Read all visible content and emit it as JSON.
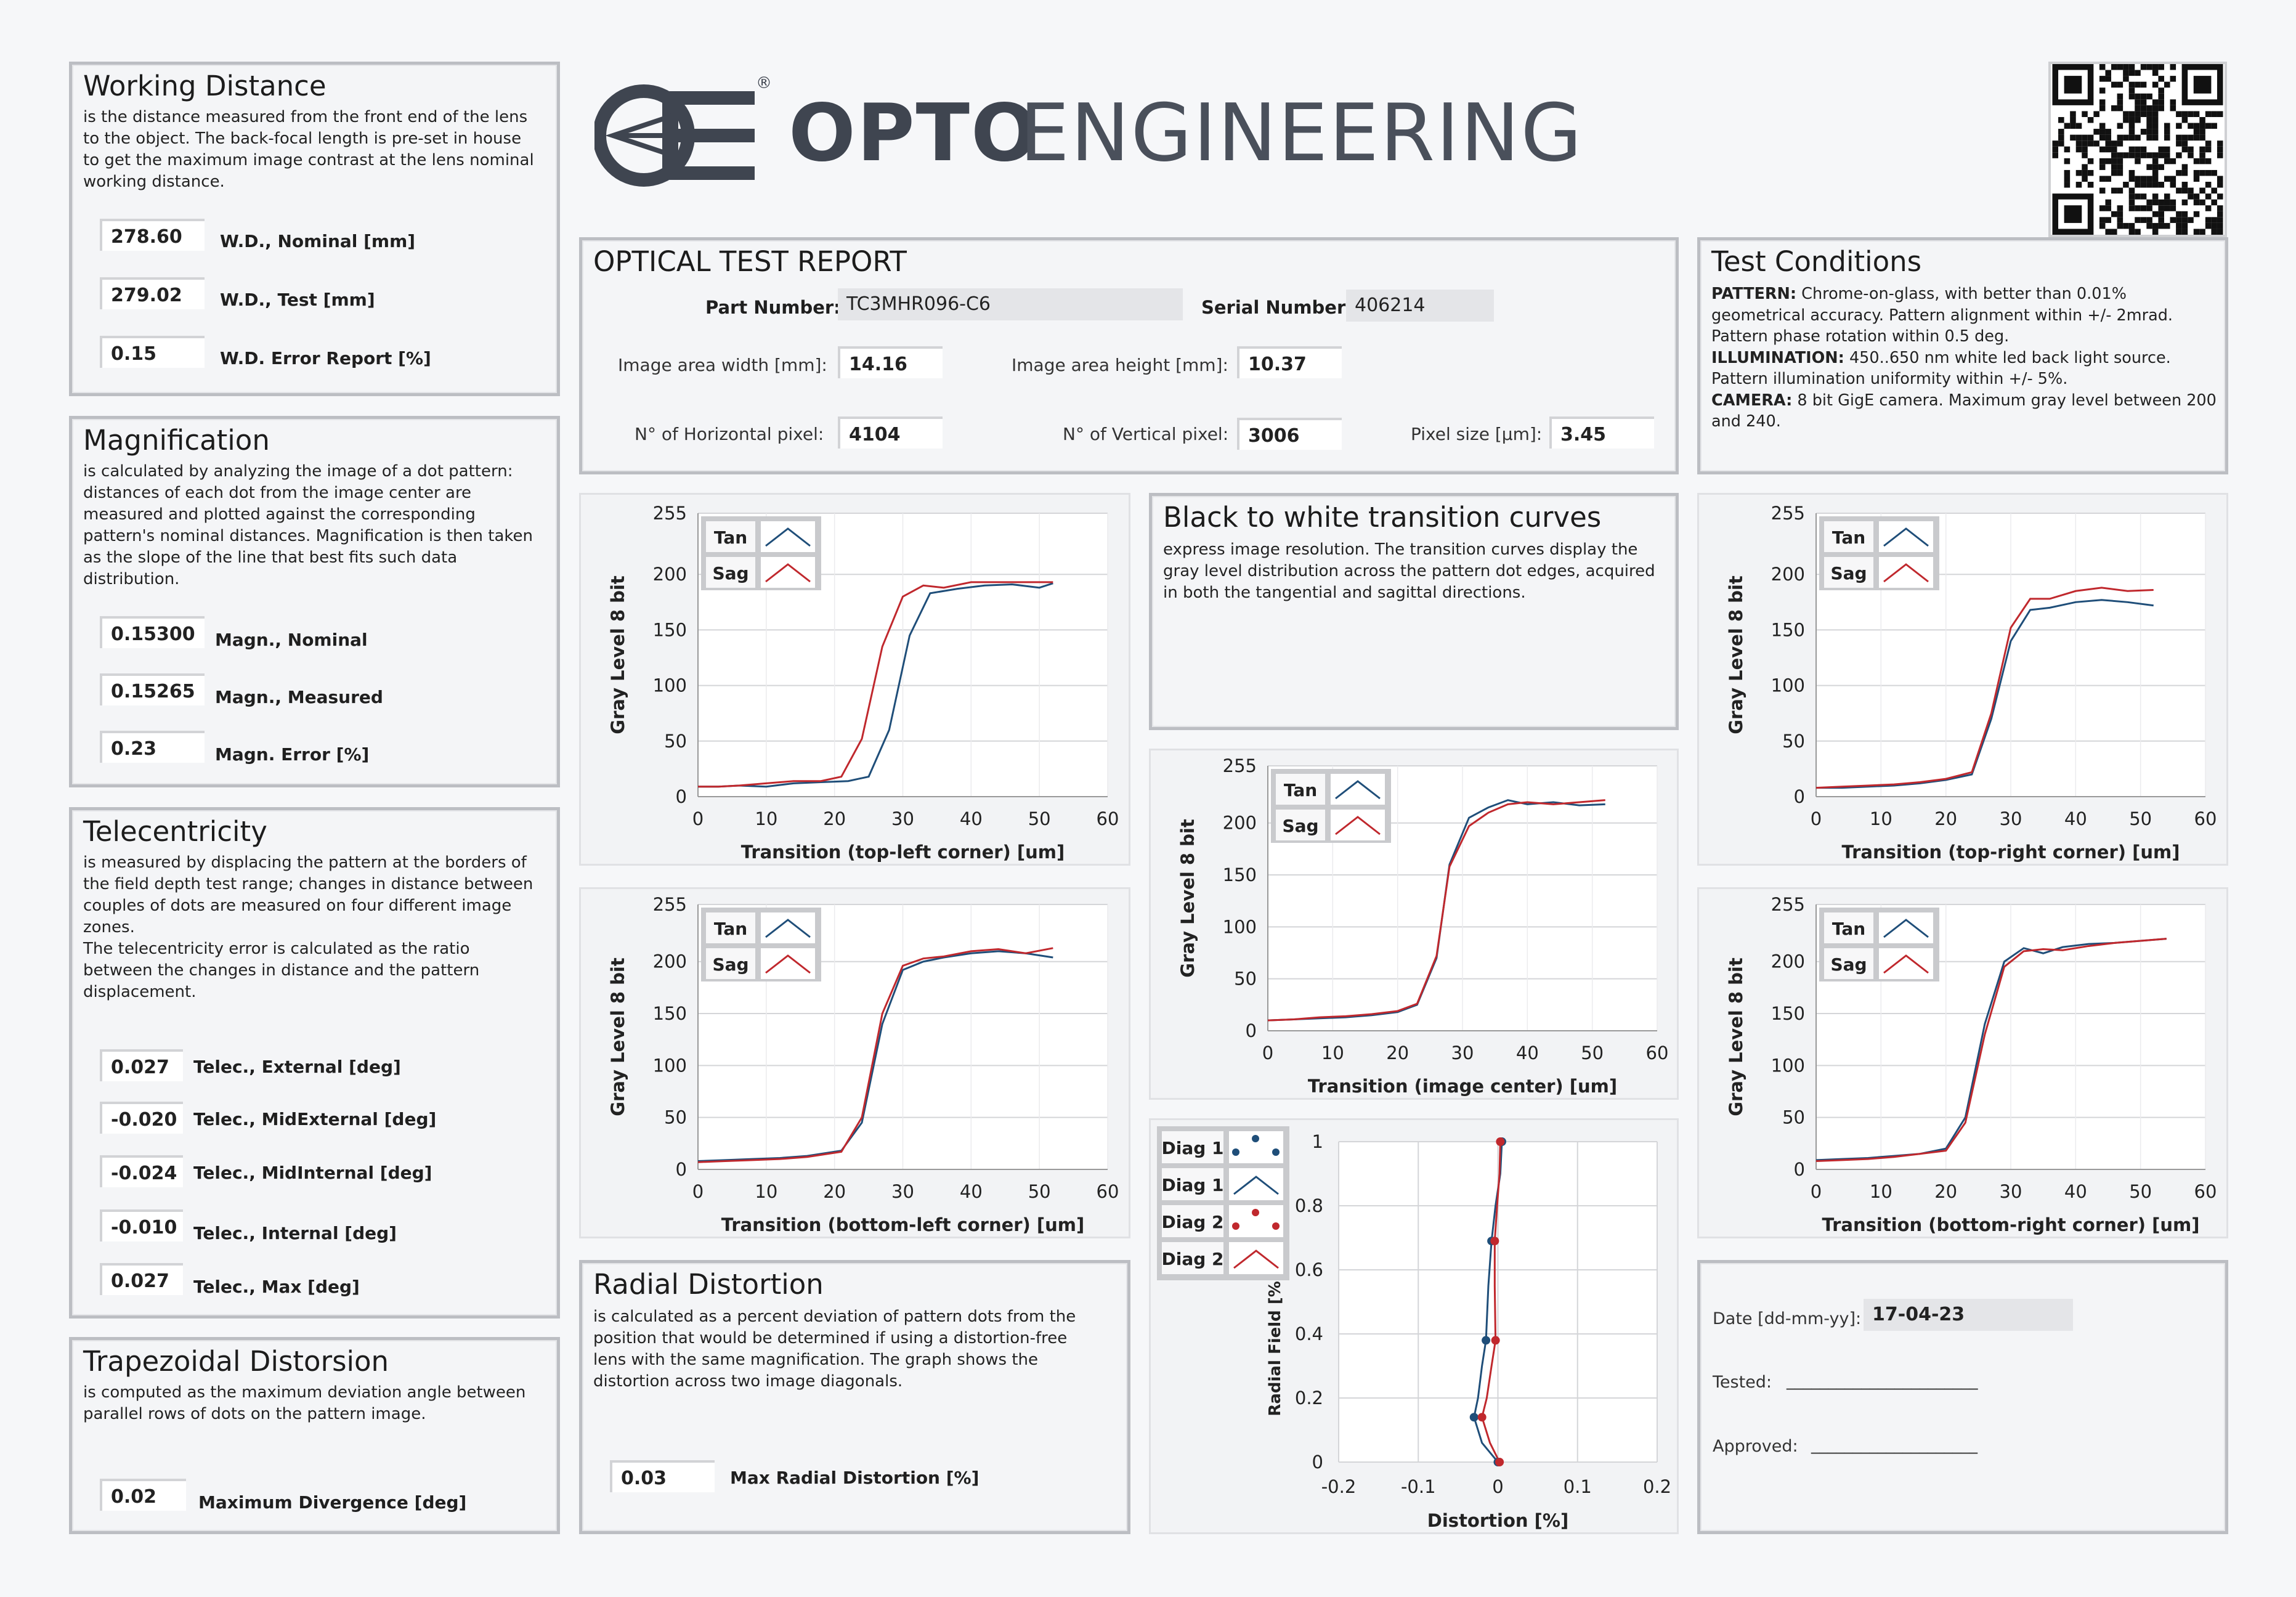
{
  "brand": {
    "name_bold": "OPTO",
    "name_light": "ENGINEERING",
    "registered": "®"
  },
  "working_distance": {
    "title": "Working Distance",
    "desc": [
      "is the distance measured from the front end of the lens",
      "to the object. The back-focal length is pre-set in house",
      "to get the maximum image contrast at the lens nominal",
      "working distance."
    ],
    "rows": [
      {
        "value": "278.60",
        "label": "W.D., Nominal [mm]"
      },
      {
        "value": "279.02",
        "label": "W.D., Test [mm]"
      },
      {
        "value": "0.15",
        "label": "W.D. Error Report [%]"
      }
    ]
  },
  "magnification": {
    "title": "Magnification",
    "desc": [
      "is calculated by analyzing the image of a dot pattern:",
      "distances of each dot from the image center are",
      "measured and plotted against the corresponding",
      "pattern's nominal distances. Magnification is then taken",
      "as the slope of the line that best fits such data",
      "distribution."
    ],
    "rows": [
      {
        "value": "0.15300",
        "label": "Magn., Nominal"
      },
      {
        "value": "0.15265",
        "label": "Magn., Measured"
      },
      {
        "value": "0.23",
        "label": "Magn. Error [%]"
      }
    ]
  },
  "telecentricity": {
    "title": "Telecentricity",
    "desc": [
      "is measured by displacing the pattern at the borders of",
      "the field depth test range; changes in distance between",
      "couples of dots are measured on four different image",
      "zones.",
      "The telecentricity error is calculated as the ratio",
      "between the changes in distance and the pattern",
      "displacement."
    ],
    "rows": [
      {
        "value": "0.027",
        "label": "Telec., External [deg]"
      },
      {
        "value": "-0.020",
        "label": "Telec., MidExternal [deg]"
      },
      {
        "value": "-0.024",
        "label": "Telec., MidInternal [deg]"
      },
      {
        "value": "-0.010",
        "label": "Telec., Internal [deg]"
      },
      {
        "value": "0.027",
        "label": "Telec., Max [deg]"
      }
    ]
  },
  "trapezoidal": {
    "title": "Trapezoidal Distorsion",
    "desc": [
      "is computed as the maximum deviation angle between",
      "parallel rows of dots on the pattern image."
    ],
    "value": "0.02",
    "label": "Maximum Divergence [deg]"
  },
  "report": {
    "title": "OPTICAL TEST REPORT",
    "part_label": "Part Number:",
    "part_value": "TC3MHR096-C6",
    "serial_label": "Serial Number:",
    "serial_value": "406214",
    "width_label": "Image area width [mm]:",
    "width_value": "14.16",
    "height_label": "Image area height [mm]:",
    "height_value": "10.37",
    "hpix_label": "N° of Horizontal pixel:",
    "hpix_value": "4104",
    "vpix_label": "N° of Vertical pixel:",
    "vpix_value": "3006",
    "pixsize_label": "Pixel size [µm]:",
    "pixsize_value": "3.45"
  },
  "test_conditions": {
    "title": "Test Conditions",
    "lines": [
      {
        "key": "PATTERN:",
        "text": " Chrome-on-glass, with better than 0.01%"
      },
      {
        "key": "",
        "text": "geometrical accuracy. Pattern alignment within +/- 2mrad."
      },
      {
        "key": "",
        "text": "Pattern phase rotation within 0.5 deg."
      },
      {
        "key": "ILLUMINATION:",
        "text": " 450..650 nm white led back light source."
      },
      {
        "key": "",
        "text": "Pattern illumination uniformity within +/- 5%."
      },
      {
        "key": "CAMERA:",
        "text": " 8 bit GigE camera. Maximum gray level between 200"
      },
      {
        "key": "",
        "text": "and 240."
      }
    ]
  },
  "bw_transition": {
    "title": "Black to white transition curves",
    "desc": [
      "express image resolution. The transition curves display the",
      "gray level distribution across the pattern dot edges, acquired",
      "in both the tangential and sagittal directions."
    ]
  },
  "radial": {
    "title": "Radial Distortion",
    "desc": [
      "is calculated as a percent deviation of pattern dots from the",
      "position that would be determined if using a distortion-free",
      "lens with the same magnification. The graph shows the",
      "distortion across two image diagonals."
    ],
    "value": "0.03",
    "label": "Max  Radial Distortion [%]"
  },
  "signoff": {
    "date_label": "Date [dd-mm-yy]:",
    "date_value": "17-04-23",
    "tested_label": "Tested:",
    "tested_line": "_______________________",
    "approved_label": "Approved:",
    "approved_line": "____________________"
  },
  "colors": {
    "tan": "#1f4e79",
    "sag": "#c0282d",
    "grid": "#d4d5d8"
  },
  "chart_data": [
    {
      "id": "top-left",
      "type": "line",
      "xlabel": "Transition (top-left corner)  [um]",
      "ylabel": "Gray  Level 8 bit",
      "xlim": [
        0,
        60
      ],
      "ylim": [
        0,
        255
      ],
      "xticks": [
        0,
        10,
        20,
        30,
        40,
        50,
        60
      ],
      "yticks": [
        0,
        50,
        100,
        150,
        200,
        255
      ],
      "legend": [
        "Tan",
        "Sag"
      ],
      "series": [
        {
          "name": "Tan",
          "x": [
            0,
            3,
            6,
            10,
            14,
            18,
            22,
            25,
            28,
            31,
            34,
            38,
            42,
            46,
            50,
            52
          ],
          "y": [
            9,
            9,
            10,
            9,
            12,
            13,
            14,
            18,
            60,
            145,
            183,
            187,
            190,
            191,
            188,
            192
          ]
        },
        {
          "name": "Sag",
          "x": [
            0,
            3,
            6,
            10,
            14,
            18,
            21,
            24,
            27,
            30,
            33,
            36,
            40,
            44,
            48,
            52
          ],
          "y": [
            9,
            9,
            10,
            12,
            14,
            14,
            18,
            52,
            135,
            180,
            190,
            188,
            193,
            193,
            193,
            193
          ]
        }
      ]
    },
    {
      "id": "top-right",
      "type": "line",
      "xlabel": "Transition (top-right corner) [um]",
      "ylabel": "Gray  Level 8 bit",
      "xlim": [
        0,
        60
      ],
      "ylim": [
        0,
        255
      ],
      "xticks": [
        0,
        10,
        20,
        30,
        40,
        50,
        60
      ],
      "yticks": [
        0,
        50,
        100,
        150,
        200,
        255
      ],
      "legend": [
        "Tan",
        "Sag"
      ],
      "series": [
        {
          "name": "Tan",
          "x": [
            0,
            4,
            8,
            12,
            16,
            20,
            24,
            27,
            30,
            33,
            36,
            40,
            44,
            48,
            52
          ],
          "y": [
            8,
            8,
            9,
            10,
            12,
            15,
            20,
            70,
            140,
            168,
            170,
            175,
            177,
            175,
            172
          ]
        },
        {
          "name": "Sag",
          "x": [
            0,
            4,
            8,
            12,
            16,
            20,
            24,
            27,
            30,
            33,
            36,
            40,
            44,
            48,
            52
          ],
          "y": [
            8,
            9,
            10,
            11,
            13,
            16,
            22,
            75,
            152,
            178,
            178,
            185,
            188,
            185,
            186
          ]
        }
      ]
    },
    {
      "id": "center",
      "type": "line",
      "xlabel": "Transition (image center)  [um]",
      "ylabel": "Gray  Level 8 bit",
      "xlim": [
        0,
        60
      ],
      "ylim": [
        0,
        255
      ],
      "xticks": [
        0,
        10,
        20,
        30,
        40,
        50,
        60
      ],
      "yticks": [
        0,
        50,
        100,
        150,
        200,
        255
      ],
      "legend": [
        "Tan",
        "Sag"
      ],
      "series": [
        {
          "name": "Tan",
          "x": [
            0,
            4,
            8,
            12,
            16,
            20,
            23,
            26,
            28,
            31,
            34,
            37,
            40,
            44,
            48,
            52
          ],
          "y": [
            10,
            11,
            12,
            13,
            15,
            18,
            25,
            70,
            160,
            205,
            215,
            222,
            218,
            220,
            217,
            218
          ]
        },
        {
          "name": "Sag",
          "x": [
            0,
            4,
            8,
            12,
            16,
            20,
            23,
            26,
            28,
            31,
            34,
            37,
            40,
            44,
            48,
            52
          ],
          "y": [
            10,
            11,
            13,
            14,
            16,
            19,
            26,
            72,
            158,
            197,
            210,
            218,
            220,
            218,
            220,
            222
          ]
        }
      ]
    },
    {
      "id": "bottom-left",
      "type": "line",
      "xlabel": "Transition (bottom-left corner) [um]",
      "ylabel": "Gray  Level 8 bit",
      "xlim": [
        0,
        60
      ],
      "ylim": [
        0,
        255
      ],
      "xticks": [
        0,
        10,
        20,
        30,
        40,
        50,
        60
      ],
      "yticks": [
        0,
        50,
        100,
        150,
        200,
        255
      ],
      "legend": [
        "Tan",
        "Sag"
      ],
      "series": [
        {
          "name": "Tan",
          "x": [
            0,
            4,
            8,
            12,
            16,
            21,
            24,
            27,
            30,
            33,
            36,
            40,
            44,
            48,
            52
          ],
          "y": [
            8,
            9,
            10,
            11,
            13,
            18,
            45,
            140,
            192,
            200,
            204,
            208,
            210,
            208,
            204
          ]
        },
        {
          "name": "Sag",
          "x": [
            0,
            4,
            8,
            12,
            16,
            21,
            24,
            27,
            30,
            33,
            36,
            40,
            44,
            48,
            52
          ],
          "y": [
            7,
            8,
            9,
            10,
            12,
            17,
            50,
            150,
            196,
            203,
            205,
            210,
            212,
            208,
            213
          ]
        }
      ]
    },
    {
      "id": "bottom-right",
      "type": "line",
      "xlabel": "Transition (bottom-right corner) [um]",
      "ylabel": "Gray  Level 8 bit",
      "xlim": [
        0,
        60
      ],
      "ylim": [
        0,
        255
      ],
      "xticks": [
        0,
        10,
        20,
        30,
        40,
        50,
        60
      ],
      "yticks": [
        0,
        50,
        100,
        150,
        200,
        255
      ],
      "legend": [
        "Tan",
        "Sag"
      ],
      "series": [
        {
          "name": "Tan",
          "x": [
            0,
            4,
            8,
            12,
            16,
            20,
            23,
            26,
            29,
            32,
            35,
            38,
            42,
            46,
            50,
            54
          ],
          "y": [
            9,
            10,
            11,
            13,
            15,
            20,
            50,
            140,
            200,
            213,
            208,
            214,
            217,
            218,
            220,
            222
          ]
        },
        {
          "name": "Sag",
          "x": [
            0,
            4,
            8,
            12,
            16,
            20,
            23,
            26,
            29,
            32,
            35,
            38,
            42,
            46,
            50,
            54
          ],
          "y": [
            8,
            9,
            10,
            12,
            15,
            18,
            45,
            130,
            195,
            210,
            212,
            211,
            215,
            218,
            220,
            222
          ]
        }
      ]
    },
    {
      "id": "radial",
      "type": "line+scatter",
      "xlabel": "Distortion [%]",
      "ylabel": "Radial Field [%]",
      "xlim": [
        -0.2,
        0.2
      ],
      "ylim": [
        0,
        1
      ],
      "xticks": [
        -0.2,
        -0.1,
        0,
        0.1,
        0.2
      ],
      "yticks": [
        0,
        0.2,
        0.4,
        0.6,
        0.8,
        1
      ],
      "legend": [
        "Diag 1",
        "Diag 1",
        "Diag 2",
        "Diag 2"
      ],
      "series": [
        {
          "name": "Diag 1 points",
          "x": [
            0.005,
            -0.008,
            -0.015,
            -0.03,
            0.0
          ],
          "y": [
            1.0,
            0.69,
            0.38,
            0.14,
            0.0
          ]
        },
        {
          "name": "Diag 1 line",
          "x": [
            0.005,
            0.003,
            -0.003,
            -0.008,
            -0.012,
            -0.015,
            -0.02,
            -0.025,
            -0.03,
            -0.02,
            0.0
          ],
          "y": [
            1.0,
            0.9,
            0.8,
            0.69,
            0.55,
            0.38,
            0.3,
            0.2,
            0.14,
            0.06,
            0.0
          ]
        },
        {
          "name": "Diag 2 points",
          "x": [
            0.003,
            -0.004,
            -0.003,
            -0.02,
            0.002
          ],
          "y": [
            1.0,
            0.69,
            0.38,
            0.14,
            0.0
          ]
        },
        {
          "name": "Diag 2 line",
          "x": [
            0.003,
            0.002,
            -0.001,
            -0.004,
            -0.004,
            -0.003,
            -0.008,
            -0.014,
            -0.02,
            -0.01,
            0.002
          ],
          "y": [
            1.0,
            0.9,
            0.8,
            0.69,
            0.55,
            0.38,
            0.3,
            0.2,
            0.14,
            0.06,
            0.0
          ]
        }
      ]
    }
  ]
}
